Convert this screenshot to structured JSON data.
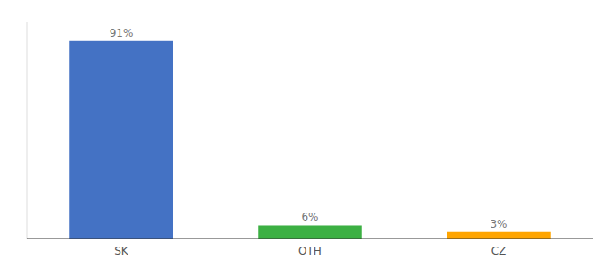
{
  "chart_data": {
    "type": "bar",
    "categories": [
      "SK",
      "OTH",
      "CZ"
    ],
    "values": [
      91,
      6,
      3
    ],
    "value_labels": [
      "91%",
      "6%",
      "3%"
    ],
    "colors": [
      "#4472C4",
      "#3CB043",
      "#FFA500"
    ],
    "ylim": [
      0,
      100
    ],
    "data_labels": true,
    "tick_labels": "x",
    "grid": false
  }
}
